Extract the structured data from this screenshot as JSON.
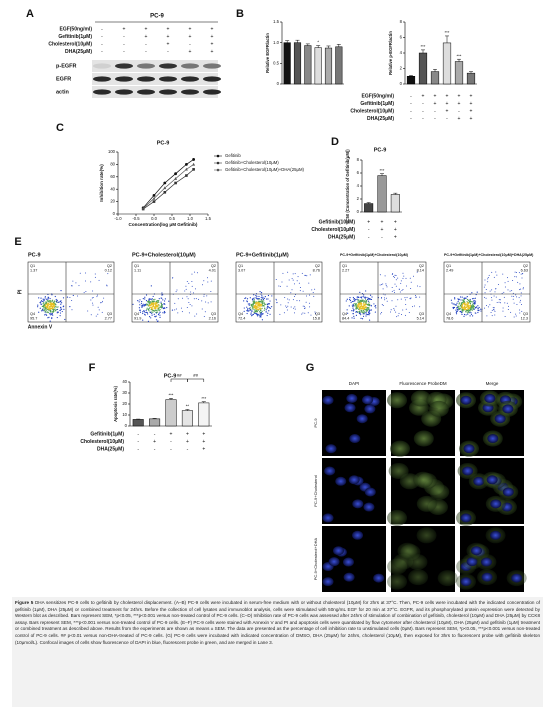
{
  "panel_a": {
    "letter": "A",
    "title": "PC-9",
    "conditions": [
      {
        "label": "EGF(50ng/ml)",
        "marks": [
          "-",
          "+",
          "+",
          "+",
          "+",
          "+"
        ]
      },
      {
        "label": "Gefitinib(1μM)",
        "marks": [
          "-",
          "-",
          "+",
          "+",
          "+",
          "+"
        ]
      },
      {
        "label": "Cholesterol(10μM)",
        "marks": [
          "-",
          "-",
          "-",
          "+",
          "-",
          "+"
        ]
      },
      {
        "label": "DHA(25μM)",
        "marks": [
          "-",
          "-",
          "-",
          "-",
          "+",
          "+"
        ]
      }
    ],
    "bands": [
      "p-EGFR",
      "EGFR",
      "actin"
    ]
  },
  "panel_b": {
    "letter": "B",
    "charts": [
      {
        "type": "bar",
        "ylabel": "Relative EGFR/actin",
        "values": [
          1.0,
          1.0,
          0.93,
          0.88,
          0.87,
          0.9
        ],
        "errors": [
          0.05,
          0.06,
          0.04,
          0.05,
          0.05,
          0.06
        ],
        "annotations": [
          null,
          null,
          null,
          "*",
          null,
          null
        ],
        "colors": [
          "#111111",
          "#555555",
          "#888888",
          "#dddddd",
          "#aaaaaa",
          "#777777"
        ],
        "ylim": [
          0,
          1.5
        ],
        "yticks": [
          0,
          0.5,
          {
            "value": 1,
            "label": "1.0"
          },
          1.5
        ]
      },
      {
        "type": "bar",
        "ylabel": "Relative p-EGFR/actin",
        "values": [
          1.0,
          4.0,
          1.6,
          5.3,
          2.9,
          1.4
        ],
        "errors": [
          0.1,
          0.4,
          0.3,
          0.9,
          0.3,
          0.2
        ],
        "annotations": [
          null,
          "***",
          null,
          "***",
          "***",
          null
        ],
        "colors": [
          "#111111",
          "#555555",
          "#888888",
          "#dddddd",
          "#aaaaaa",
          "#777777"
        ],
        "ylim": [
          0,
          8
        ],
        "yticks": [
          0,
          2,
          4,
          6,
          8
        ]
      }
    ],
    "conditions": [
      {
        "label": "EGF(50ng/ml)",
        "marks": [
          "-",
          "+",
          "+",
          "+",
          "+",
          "+"
        ]
      },
      {
        "label": "Gefitinib(1μM)",
        "marks": [
          "-",
          "-",
          "+",
          "+",
          "+",
          "+"
        ]
      },
      {
        "label": "Cholesterol(10μM)",
        "marks": [
          "-",
          "-",
          "-",
          "+",
          "-",
          "+"
        ]
      },
      {
        "label": "DHA(25μM)",
        "marks": [
          "-",
          "-",
          "-",
          "-",
          "+",
          "+"
        ]
      }
    ]
  },
  "panel_c": {
    "letter": "C",
    "type": "line",
    "title": "PC-9",
    "xlabel": "Concentration(log μM Gefitinib)",
    "ylabel": "Inhibition rate(%)",
    "x": [
      -0.3,
      0,
      0.3,
      0.6,
      0.9,
      1.1
    ],
    "series": [
      {
        "name": "Gefitinib",
        "color": "#111111",
        "values": [
          10,
          30,
          50,
          65,
          80,
          88
        ]
      },
      {
        "name": "Gefitinib+Cholesterol(10μM)",
        "color": "#333333",
        "values": [
          8,
          20,
          35,
          50,
          62,
          72
        ]
      },
      {
        "name": "Gefitinib+Cholesterol(10μM)+DHA(25μM)",
        "color": "#555555",
        "values": [
          9,
          25,
          42,
          57,
          72,
          80
        ]
      }
    ],
    "xlim": [
      -1,
      1.5
    ],
    "xticks": [
      {
        "value": -1,
        "label": "-1.0"
      },
      -0.5,
      {
        "value": 0,
        "label": "0.0"
      },
      0.5,
      {
        "value": 1,
        "label": "1.0"
      },
      1.5
    ],
    "ylim": [
      0,
      100
    ],
    "yticks": [
      0,
      20,
      40,
      60,
      80,
      100
    ]
  },
  "panel_d": {
    "letter": "D",
    "type": "bar",
    "title": "PC-9",
    "ylabel": "IC50 (Concentration of Gefitinib(μM))",
    "values": [
      1.3,
      5.6,
      2.7
    ],
    "errors": [
      0.15,
      0.3,
      0.2
    ],
    "annotations": [
      null,
      "***",
      null
    ],
    "colors": [
      "#444444",
      "#999999",
      "#dddddd"
    ],
    "ylim": [
      0,
      8
    ],
    "yticks": [
      0,
      2,
      4,
      6,
      8
    ],
    "conditions": [
      {
        "label": "Gefitinib(10μM)",
        "marks": [
          "+",
          "+",
          "+"
        ]
      },
      {
        "label": "Cholesterol(10μM)",
        "marks": [
          "-",
          "+",
          "+"
        ]
      },
      {
        "label": "DHA(25μM)",
        "marks": [
          "-",
          "-",
          "+"
        ]
      }
    ]
  },
  "panel_e": {
    "letter": "E",
    "ylabel": "PI",
    "xlabel": "Annexin V",
    "plots": [
      {
        "title": "PC-9",
        "quadrants": [
          {
            "name": "Q1",
            "value": 1.37
          },
          {
            "name": "Q2",
            "value": 0.12
          },
          {
            "name": "Q4",
            "value": 95.7
          },
          {
            "name": "Q3",
            "value": 2.77
          }
        ]
      },
      {
        "title": "PC-9+Cholesterol(10μM)",
        "quadrants": [
          {
            "name": "Q1",
            "value": 1.11
          },
          {
            "name": "Q2",
            "value": 4.01
          },
          {
            "name": "Q4",
            "value": 91.9
          },
          {
            "name": "Q3",
            "value": 2.16
          }
        ]
      },
      {
        "title": "PC-9+Gefitinib(1μM)",
        "quadrants": [
          {
            "name": "Q1",
            "value": 3.07
          },
          {
            "name": "Q2",
            "value": 8.76
          },
          {
            "name": "Q4",
            "value": 72.4
          },
          {
            "name": "Q3",
            "value": 15.8
          }
        ]
      },
      {
        "title": "PC-9+Gefitinib(1μM)+Cholesterol(10μM)",
        "quadrants": [
          {
            "name": "Q1",
            "value": 2.27
          },
          {
            "name": "Q2",
            "value": 8.14
          },
          {
            "name": "Q4",
            "value": 84.4
          },
          {
            "name": "Q3",
            "value": 5.14
          }
        ]
      },
      {
        "title": "PC-9+Gefitinib(1μM)+Cholesterol(10μM)+DHA(25μM)",
        "quadrants": [
          {
            "name": "Q1",
            "value": 2.49
          },
          {
            "name": "Q2",
            "value": 6.63
          },
          {
            "name": "Q4",
            "value": 78.6
          },
          {
            "name": "Q3",
            "value": 12.3
          }
        ]
      }
    ]
  },
  "panel_f": {
    "letter": "F",
    "type": "bar",
    "title": "PC-9",
    "ylabel": "Apoptosis rate(%)",
    "values": [
      6,
      6.5,
      24,
      14,
      21
    ],
    "errors": [
      0.3,
      0.4,
      1.2,
      1.0,
      1.1
    ],
    "annotations": [
      null,
      null,
      "***",
      "**",
      "***"
    ],
    "colors": [
      "#555555",
      "#aaaaaa",
      "#cccccc",
      "#e5e5e5",
      "#f4f4f4"
    ],
    "ylim": [
      0,
      40
    ],
    "yticks": [
      0,
      10,
      20,
      30,
      40
    ],
    "brackets": [
      "##",
      "##"
    ],
    "conditions": [
      {
        "label": "Gefitinib(1μM)",
        "marks": [
          "-",
          "-",
          "+",
          "+",
          "+"
        ]
      },
      {
        "label": "Cholesterol(10μM)",
        "marks": [
          "-",
          "+",
          "-",
          "+",
          "+"
        ]
      },
      {
        "label": "DHA(25μM)",
        "marks": [
          "-",
          "-",
          "-",
          "-",
          "+"
        ]
      }
    ]
  },
  "panel_g": {
    "letter": "G",
    "columns": [
      "DAPI",
      "Fluorescence ProbeDM",
      "Merge"
    ],
    "rows": [
      "PC-9",
      "PC-9+Cholesterol",
      "PC-9+Cholesterol+DHA"
    ]
  },
  "caption": {
    "label": "Figure 5",
    "text": "DHA sensitizes PC-9 cells to gefitinib by cholesterol displacement. (A–B) PC-9 cells were incubated in serum-free medium with or without cholesterol (10μM) for 2hrs at 37°C. Then, PC-9 cells were incubated with the indicated concentration of gefitinib (1μM), DHA (25μM) or combined treatment for 24hrs. Before the collection of cell lysates and immunoblot analysis, cells were stimulated with 50ng/mL EGF for 20 min at 37°C. EGFR, and its phosphorylated protein expression were detected by Western blot as described. Bars represent SEM, *p<0.05, ***p<0.001 versus non-treated control of PC-9 cells. (C–D) Inhibition rate of PC-9 cells was assessed after 24hrs of stimulation of combination of gefitinib, cholesterol (10μM) and DHA (25μM) by CCK8 assay. Bars represent SEM, ***p<0.001 versus non-treated control of PC-9 cells. (E–F) PC-9 cells were stained with Annexin V and PI and apoptosis cells were quantitated by flow cytometer after cholesterol (10μM), DHA (25μM) and gefitinib (1μM) treatment or combined treatment as described above. Results from the experiments are shown as means ± SEM. The data are presented as the percentage of cell inhibition rate to unstimulated cells (0μM). Bars represent SEM, *p<0.05, ***p<0.001 versus non-treated control of PC-9 cells. ## p<0.01 versus non-DHA-treated of PC-9 cells. (G) PC-9 cells were incubated with indicated concentration of DMSO, DHA (25μM) for 24hrs, cholesterol (10μM), then exposed for 3hrs to fluorescent probe with gefitinib skeleton (10μmol/L). Confocal images of cells show fluorescence of DAPI in blue, fluorescent probe in green, and are merged in Lane 3."
  }
}
